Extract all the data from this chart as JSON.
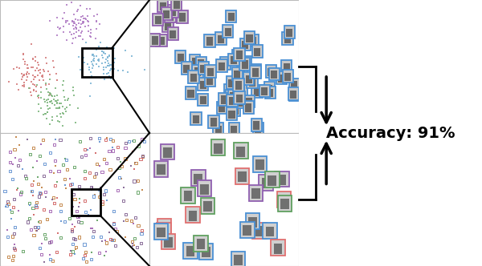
{
  "accuracy_text": "Accuracy: 91%",
  "accuracy_fontsize": 14,
  "bg_color": "#ffffff",
  "top_scatter_colors": [
    "#b07ac4",
    "#7ab4d4",
    "#d47a7a",
    "#7ab47a"
  ],
  "bottom_scatter_colors": [
    "#e07070",
    "#70a0e0",
    "#b070c0",
    "#70b070",
    "#d09050",
    "#9060a0"
  ],
  "zoom_box_color": "#000000",
  "top_zoom_border_color": "#4a90d4",
  "top_zoom_border_color2": "#9060b0",
  "bottom_zoom_colors": [
    "#e07070",
    "#4a90d4",
    "#9060b0",
    "#60a060"
  ],
  "connector_color": "#000000",
  "arrow_lw": 2.5
}
